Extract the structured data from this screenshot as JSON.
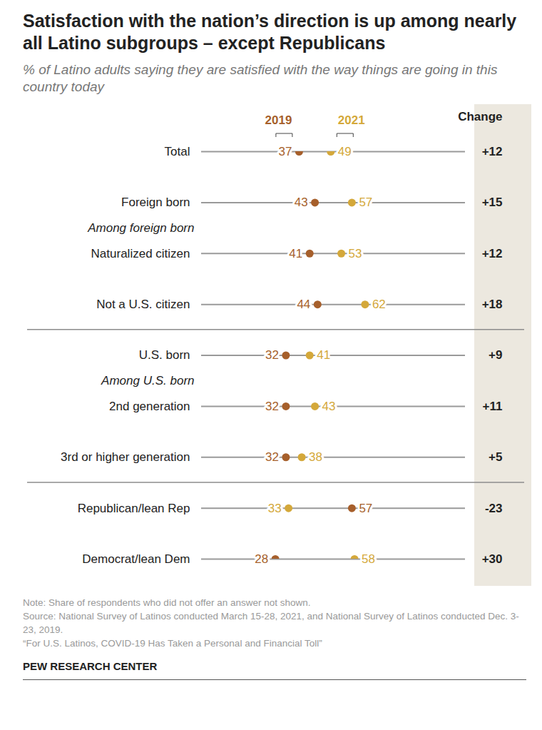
{
  "chart_data": {
    "type": "dumbbell",
    "title": "Satisfaction with the nation’s direction is up among nearly all Latino subgroups – except Republicans",
    "subtitle": "% of Latino adults saying they are satisfied with the way things are going in this country today",
    "categories": [
      "Total",
      "Foreign born",
      "Naturalized citizen",
      "Not a U.S. citizen",
      "U.S. born",
      "2nd generation",
      "3rd or higher generation",
      "Republican/lean Rep",
      "Democrat/lean Dem"
    ],
    "subheadings": [
      null,
      null,
      "Among foreign born",
      null,
      null,
      "Among U.S. born",
      null,
      null,
      null
    ],
    "series": [
      {
        "name": "2019",
        "color": "#a65f2b",
        "values": [
          37,
          43,
          41,
          44,
          32,
          32,
          32,
          57,
          28
        ]
      },
      {
        "name": "2021",
        "color": "#d4a83a",
        "values": [
          49,
          57,
          53,
          62,
          41,
          43,
          38,
          33,
          58
        ]
      }
    ],
    "change": {
      "title": "Change",
      "values": [
        12,
        15,
        12,
        18,
        9,
        11,
        5,
        -23,
        30
      ],
      "value_labels": [
        "+12",
        "+15",
        "+12",
        "+18",
        "+9",
        "+11",
        "+5",
        "-23",
        "+30"
      ]
    },
    "xlim": [
      0,
      100
    ],
    "tick_labels": false,
    "data_labels": true,
    "notes": [
      "Note: Share of respondents who did not offer an answer not shown.",
      "Source: National Survey of Latinos conducted March 15-28, 2021, and National Survey of Latinos conducted Dec. 3-23, 2019.",
      "“For U.S. Latinos, COVID-19 Has Taken a Personal and Financial Toll”"
    ],
    "credit": "PEW RESEARCH CENTER"
  }
}
